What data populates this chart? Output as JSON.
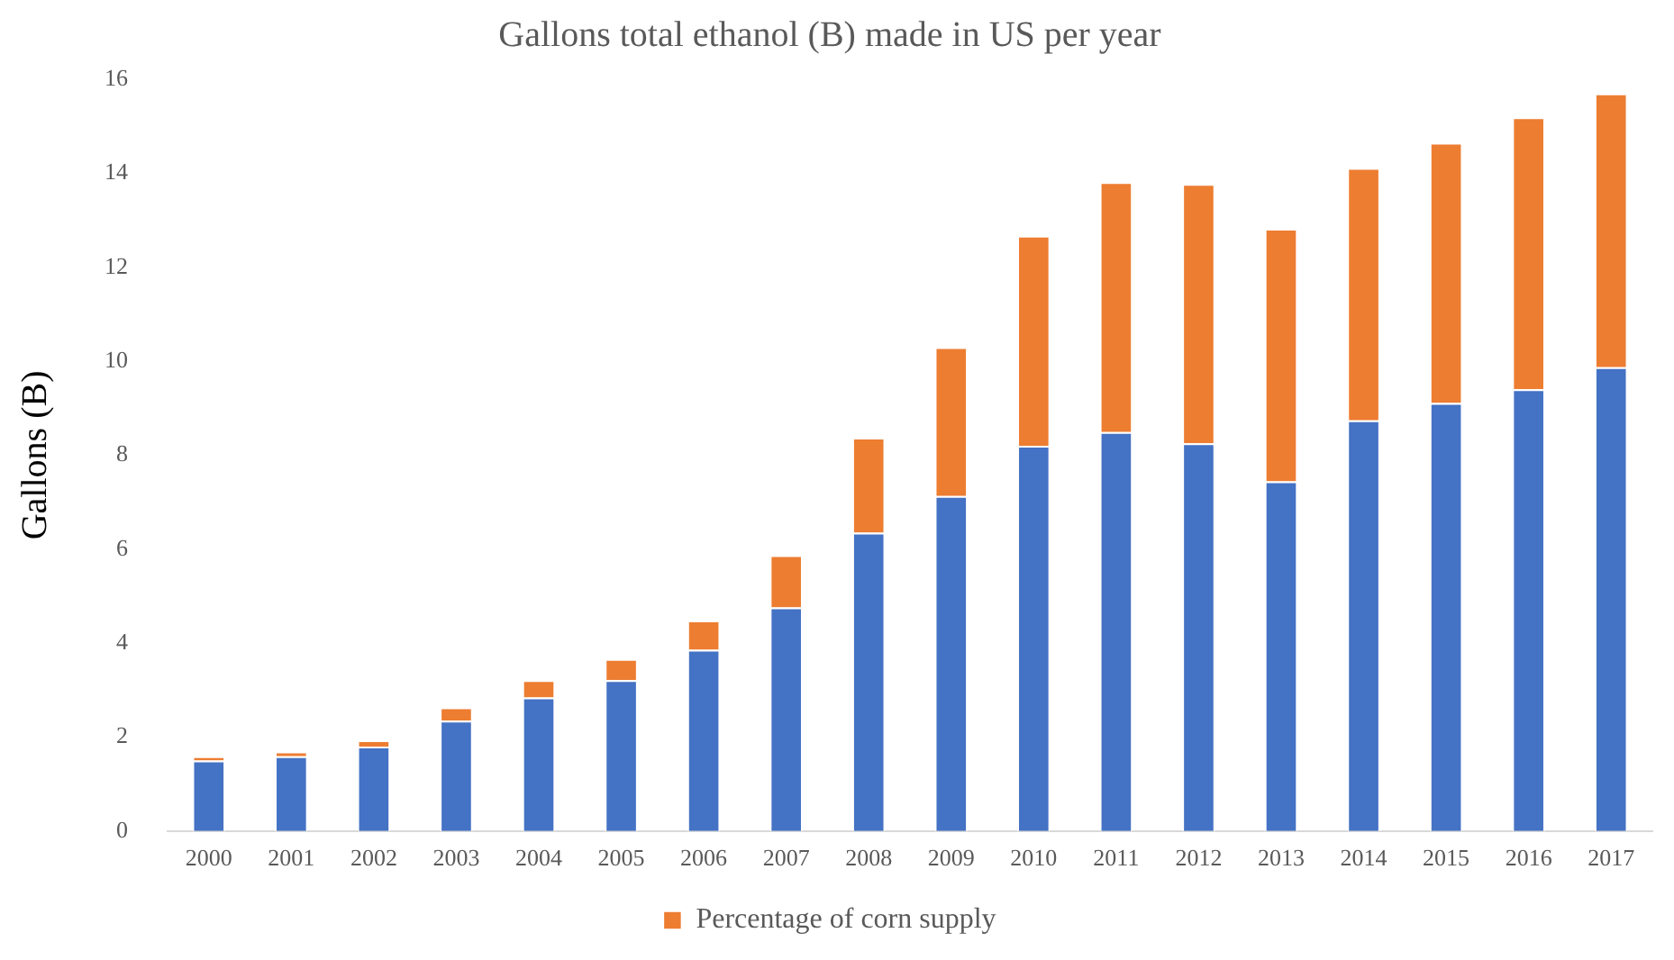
{
  "chart_data": {
    "type": "bar",
    "title": "Gallons total ethanol (B) made in US per year",
    "ylabel": "Gallons (B)",
    "categories": [
      "2000",
      "2001",
      "2002",
      "2003",
      "2004",
      "2005",
      "2006",
      "2007",
      "2008",
      "2009",
      "2010",
      "2011",
      "2012",
      "2013",
      "2014",
      "2015",
      "2016",
      "2017"
    ],
    "stacked": true,
    "series": [
      {
        "color": "#4472c4",
        "values": [
          1.5,
          1.59,
          1.8,
          2.35,
          2.84,
          3.21,
          3.86,
          4.76,
          6.35,
          7.13,
          8.2,
          8.49,
          8.25,
          7.44,
          8.74,
          9.11,
          9.4,
          9.87
        ]
      },
      {
        "name": "Percentage of corn supply",
        "color": "#ed7d31",
        "values": [
          0.09,
          0.1,
          0.13,
          0.28,
          0.37,
          0.45,
          0.62,
          1.11,
          2.02,
          3.17,
          4.47,
          5.32,
          5.52,
          5.38,
          5.37,
          5.54,
          5.79,
          5.83
        ]
      }
    ],
    "ylim": [
      0,
      16
    ],
    "yticks": [
      0,
      2,
      4,
      6,
      8,
      10,
      12,
      14,
      16
    ],
    "grid": false,
    "legend": "bottom"
  }
}
